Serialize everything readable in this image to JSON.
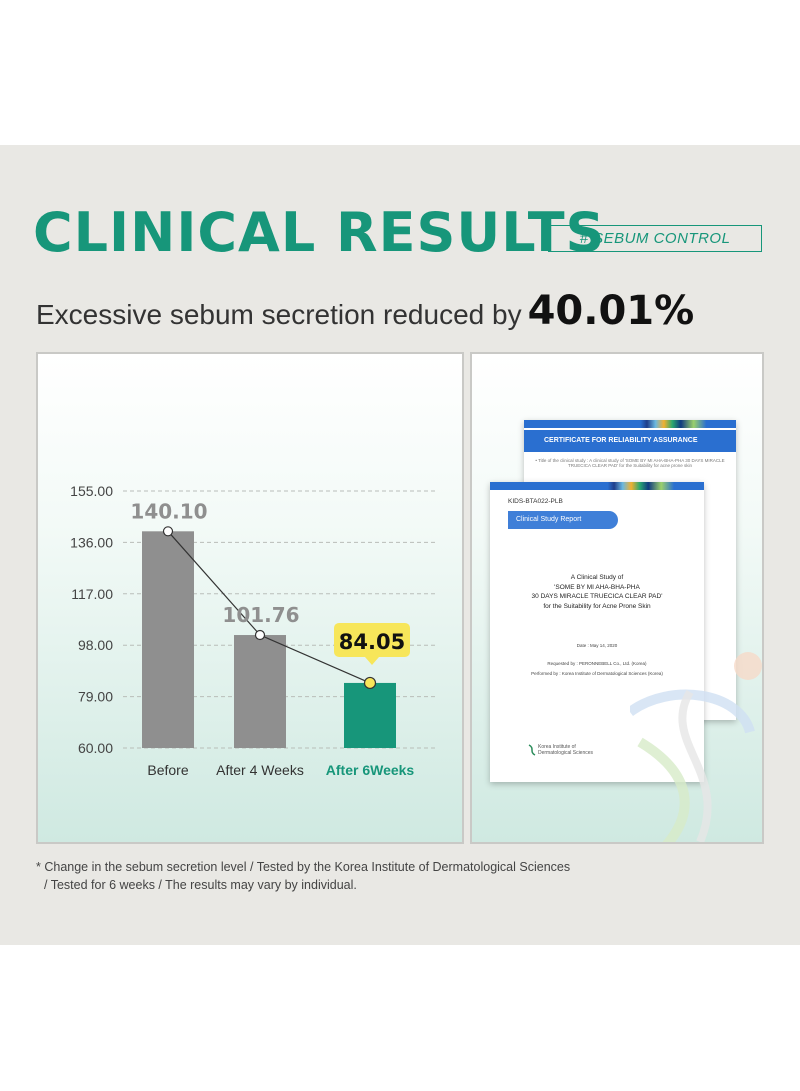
{
  "header": {
    "title": "CLINICAL RESULTS",
    "tag": "# SEBUM CONTROL",
    "subtitle_text": "Excessive sebum secretion reduced by",
    "subtitle_highlight": "40.01%"
  },
  "chart_data": {
    "type": "bar",
    "categories": [
      "Before",
      "After 4 Weeks",
      "After 6Weeks"
    ],
    "values": [
      140.1,
      101.76,
      84.05
    ],
    "value_labels": [
      "140.10",
      "101.76",
      "84.05"
    ],
    "yticks": [
      "155.00",
      "136.00",
      "117.00",
      "98.00",
      "79.00",
      "60.00"
    ],
    "ylim": [
      60,
      155
    ],
    "grid": true,
    "line_overlay": true,
    "highlight_index": 2,
    "colors": {
      "bar": "#8f8f8f",
      "highlight_bar": "#17967a",
      "callout": "#f7e65a",
      "accent": "#17967a",
      "label_gray": "#8f8f8f"
    }
  },
  "certificates": {
    "back_title": "CERTIFICATE FOR RELIABILITY ASSURANCE",
    "back_line": "• Title of the clinical study : A clinical study of 'SOME BY MI AHA-BHA-PHA 30 DAYS MIRACLE TRUECICA CLEAR PAD' for the Suitability for acne prone skin",
    "code": "KIDS-BTA022-PLB",
    "report_label": "Clinical Study Report",
    "study_lines": [
      "A Clinical Study of",
      "'SOME BY MI AHA-BHA-PHA",
      "30 DAYS MIRACLE TRUECICA CLEAR PAD'",
      "for the Suitability for Acne Prone Skin"
    ],
    "date": "Date : May 14, 2020",
    "requested_by": "Requested by : PERONNEBELL Co., Ltd. (Korea)",
    "performed_by": "Performed by : Korea Institute of Dermatological Sciences (Korea)",
    "institute_lines": [
      "Korea Institute of",
      "Dermatological Sciences"
    ]
  },
  "footnote": {
    "line1": "* Change in the sebum secretion level / Tested by the Korea Institute of Dermatological Sciences",
    "line2": "/ Tested for 6 weeks / The results may vary by individual."
  }
}
